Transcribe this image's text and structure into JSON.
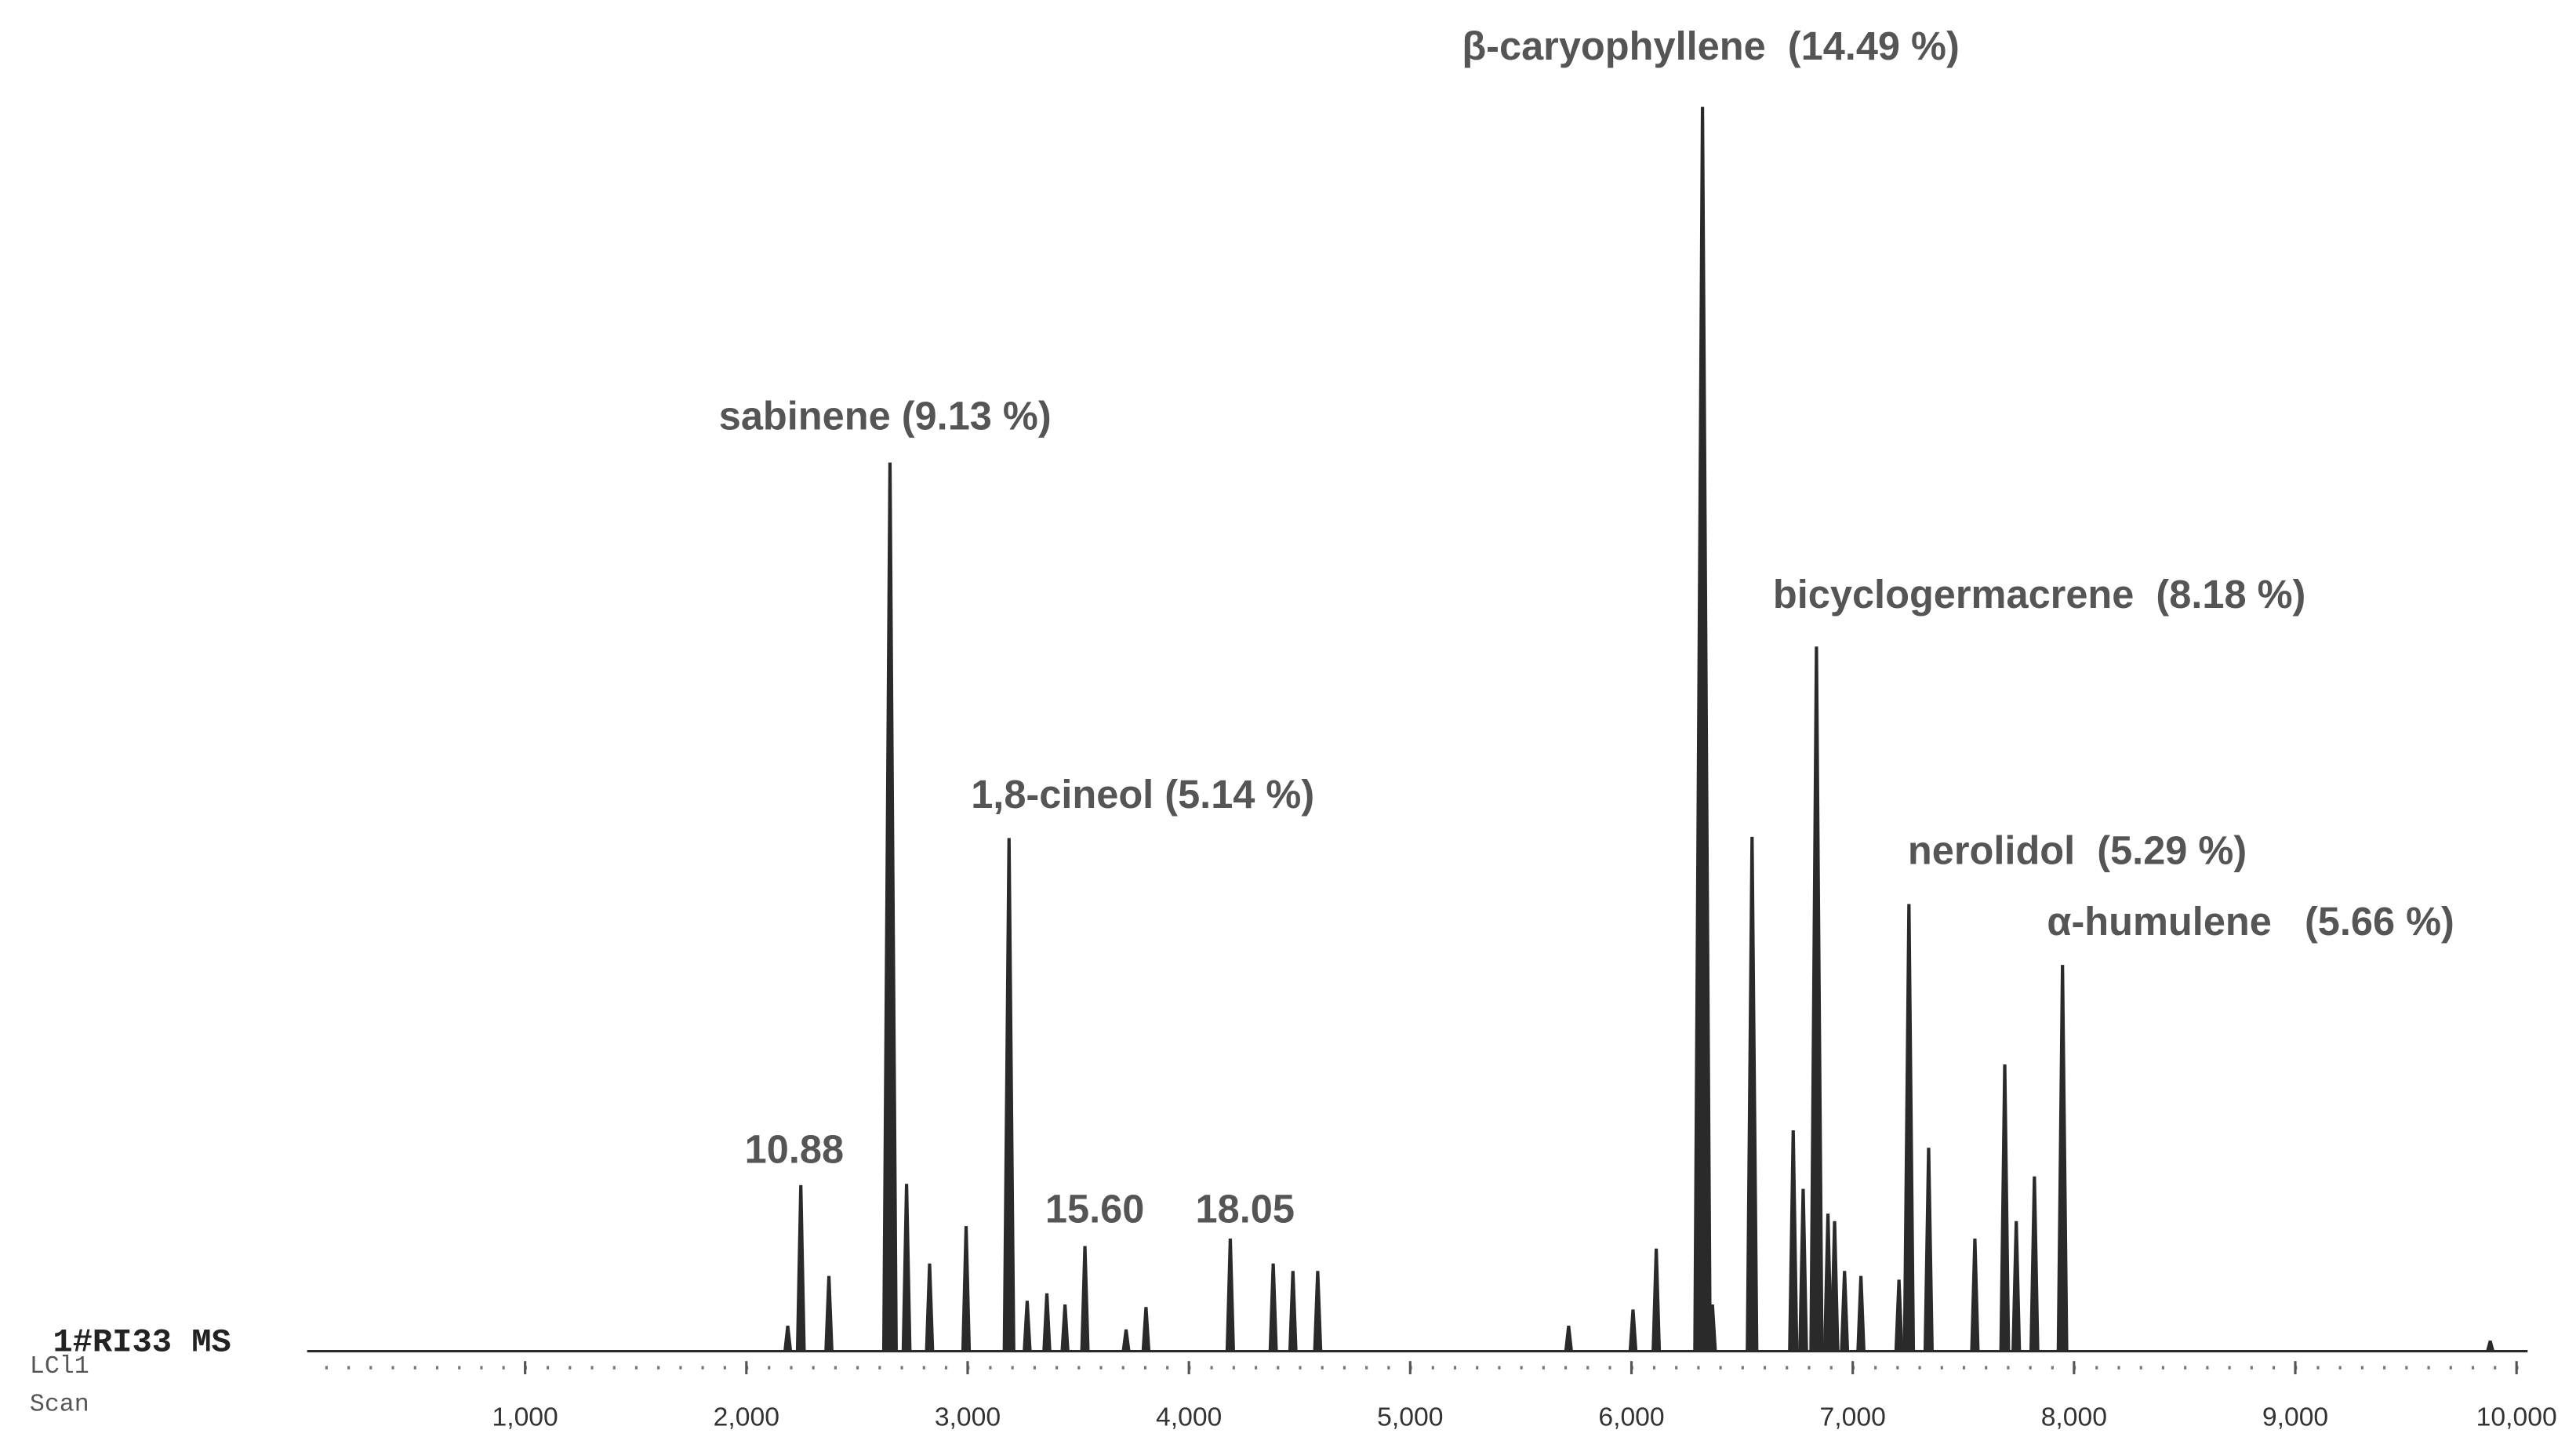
{
  "chart_data": {
    "type": "chromatogram",
    "trace_label": "1#RI33 MS",
    "side_labels": [
      "LCl1",
      "Scan"
    ],
    "annotations": [
      "β-caryophyllene  (14.49 %)",
      "sabinene (9.13 %)",
      "1,8-cineol (5.14 %)",
      "bicyclogermacrene  (8.18 %)",
      "nerolidol  (5.29 %)",
      "α-humulene   (5.66 %)",
      "10.88",
      "15.60",
      "18.05"
    ],
    "x": [
      2187,
      2246,
      2373,
      2649,
      2724,
      2828,
      2993,
      3187,
      3269,
      3358,
      3440,
      3530,
      3716,
      3806,
      4187,
      4381,
      4470,
      4582,
      5716,
      6007,
      6112,
      6321,
      6366,
      6545,
      6731,
      6776,
      6836,
      6888,
      6918,
      6963,
      7037,
      7209,
      7254,
      7343,
      7552,
      7687,
      7739,
      7821,
      7948,
      9881
    ],
    "values": [
      2,
      13.3,
      6,
      71.4,
      13.4,
      7,
      10,
      41.2,
      4,
      4.6,
      3.7,
      8.4,
      1.7,
      3.5,
      9,
      7,
      6.4,
      6.4,
      2,
      3.3,
      8.2,
      100,
      3.7,
      41.3,
      17.7,
      13,
      56.6,
      11,
      10.4,
      6.4,
      6,
      5.7,
      35.9,
      16.3,
      9,
      23,
      10.4,
      14,
      31,
      0.8
    ],
    "color": "#2a2a2a",
    "xlim": [
      0,
      10050
    ],
    "ylim": [
      0,
      100
    ],
    "xticks": [
      {
        "value": 1000,
        "label": "1,000"
      },
      {
        "value": 2000,
        "label": "2,000"
      },
      {
        "value": 3000,
        "label": "3,000"
      },
      {
        "value": 4000,
        "label": "4,000"
      },
      {
        "value": 5000,
        "label": "5,000"
      },
      {
        "value": 6000,
        "label": "6,000"
      },
      {
        "value": 7000,
        "label": "7,000"
      },
      {
        "value": 8000,
        "label": "8,000"
      },
      {
        "value": 9000,
        "label": "9,000"
      },
      {
        "value": 10000,
        "label": "10,000"
      }
    ]
  }
}
